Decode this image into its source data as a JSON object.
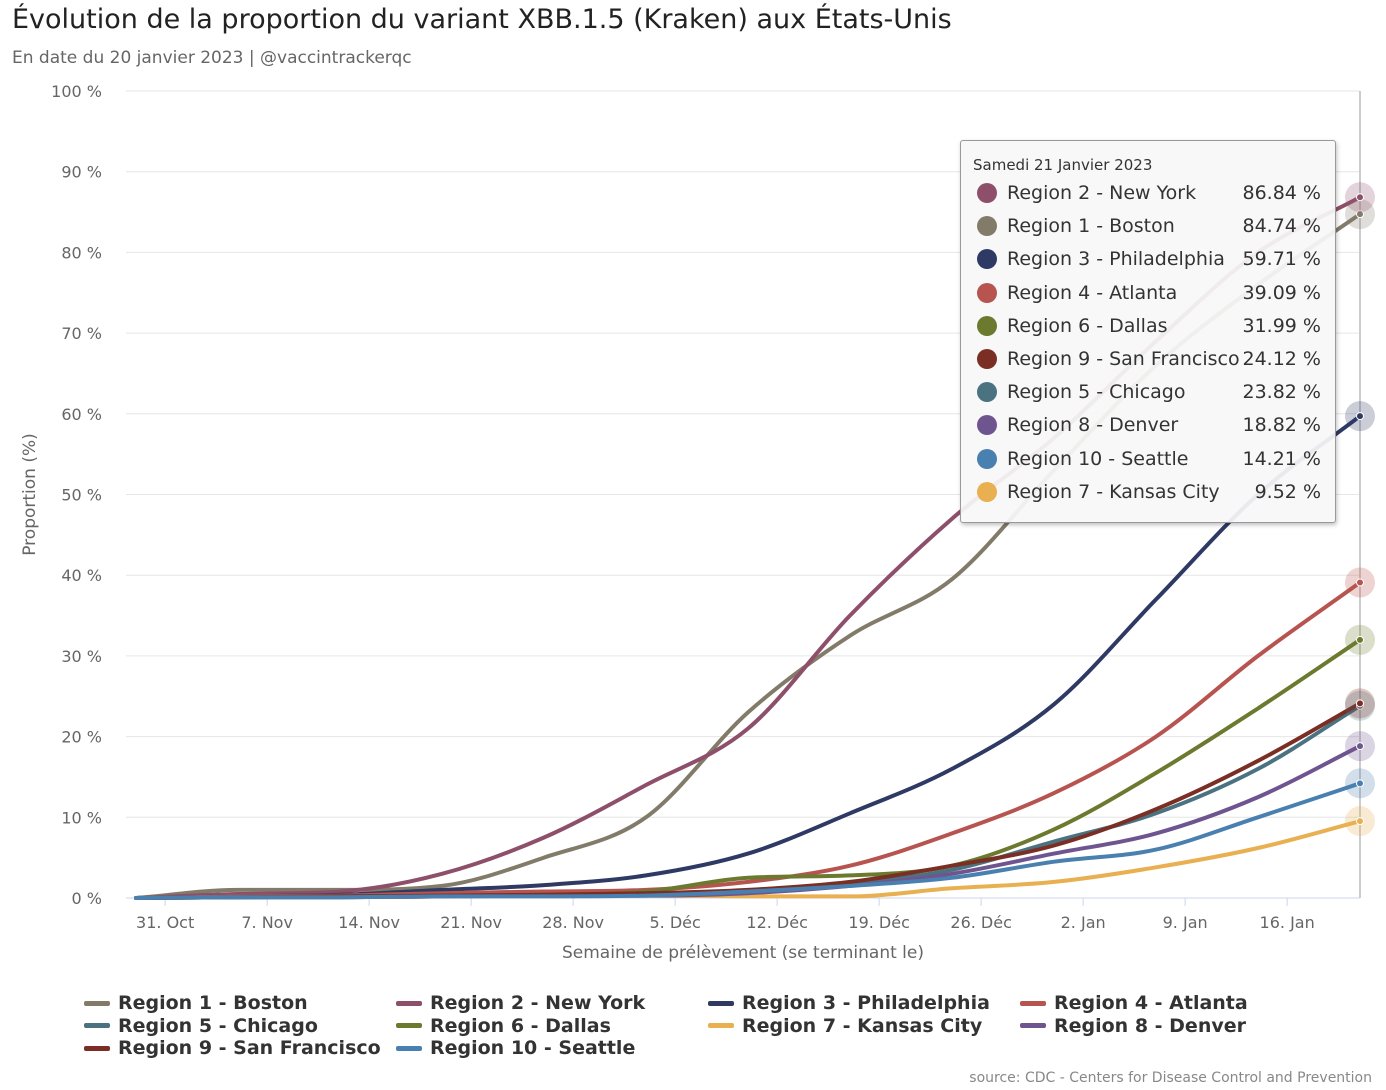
{
  "title": "Évolution de la proportion du variant XBB.1.5 (Kraken) aux États-Unis",
  "subtitle": "En date du 20 janvier 2023 | @vaccintrackerqc",
  "source": "source: CDC - Centers for Disease Control and Prevention",
  "tooltip": {
    "title": "Samedi 21 Janvier 2023",
    "rows": [
      {
        "name": "Region 2 - New York",
        "value": "86.84 %",
        "color": "#8e4f6a"
      },
      {
        "name": "Region 1 - Boston",
        "value": "84.74 %",
        "color": "#837b6a"
      },
      {
        "name": "Region 3 - Philadelphia",
        "value": "59.71 %",
        "color": "#2f3a64"
      },
      {
        "name": "Region 4 - Atlanta",
        "value": "39.09 %",
        "color": "#b85450"
      },
      {
        "name": "Region 6 - Dallas",
        "value": "31.99 %",
        "color": "#6b7a2e"
      },
      {
        "name": "Region 9 - San Francisco",
        "value": "24.12 %",
        "color": "#7a2e24"
      },
      {
        "name": "Region 5 - Chicago",
        "value": "23.82 %",
        "color": "#4a7280"
      },
      {
        "name": "Region 8 - Denver",
        "value": "18.82 %",
        "color": "#6f5590"
      },
      {
        "name": "Region 10 - Seattle",
        "value": "14.21 %",
        "color": "#4a80b0"
      },
      {
        "name": "Region 7 - Kansas City",
        "value": "9.52 %",
        "color": "#e8b050"
      }
    ]
  },
  "chart_data": {
    "type": "line",
    "xlabel": "Semaine de prélèvement (se terminant le)",
    "ylabel": "Proportion (%)",
    "ylim": [
      0,
      100
    ],
    "y_ticks": [
      "0 %",
      "10 %",
      "20 %",
      "30 %",
      "40 %",
      "50 %",
      "60 %",
      "70 %",
      "80 %",
      "90 %",
      "100 %"
    ],
    "x": [
      "2022-10-29",
      "2022-11-05",
      "2022-11-12",
      "2022-11-19",
      "2022-11-26",
      "2022-12-03",
      "2022-12-10",
      "2022-12-17",
      "2022-12-24",
      "2022-12-31",
      "2023-01-07",
      "2023-01-14",
      "2023-01-21"
    ],
    "x_ticks": [
      {
        "date": "2022-10-31",
        "label": "31. Oct"
      },
      {
        "date": "2022-11-07",
        "label": "7. Nov"
      },
      {
        "date": "2022-11-14",
        "label": "14. Nov"
      },
      {
        "date": "2022-11-21",
        "label": "21. Nov"
      },
      {
        "date": "2022-11-28",
        "label": "28. Nov"
      },
      {
        "date": "2022-12-05",
        "label": "5. Déc"
      },
      {
        "date": "2022-12-12",
        "label": "12. Déc"
      },
      {
        "date": "2022-12-19",
        "label": "19. Déc"
      },
      {
        "date": "2022-12-26",
        "label": "26. Déc"
      },
      {
        "date": "2023-01-02",
        "label": "2. Jan"
      },
      {
        "date": "2023-01-09",
        "label": "9. Jan"
      },
      {
        "date": "2023-01-16",
        "label": "16. Jan"
      }
    ],
    "grid": true,
    "legend_position": "bottom",
    "series": [
      {
        "name": "Region 1 - Boston",
        "color": "#837b6a",
        "values": [
          0,
          1.0,
          1.0,
          1.5,
          5.0,
          10.0,
          23.0,
          32.5,
          39.5,
          53.0,
          66.0,
          76.0,
          84.74
        ]
      },
      {
        "name": "Region 2 - New York",
        "color": "#8e4f6a",
        "values": [
          0,
          0.5,
          0.8,
          3.0,
          7.5,
          14.0,
          21.0,
          35.0,
          47.0,
          57.0,
          69.0,
          80.0,
          86.84
        ]
      },
      {
        "name": "Region 3 - Philadelphia",
        "color": "#2f3a64",
        "values": [
          0,
          0.2,
          0.4,
          1.0,
          1.6,
          2.8,
          5.5,
          10.5,
          16.0,
          24.0,
          37.0,
          50.0,
          59.71
        ]
      },
      {
        "name": "Region 4 - Atlanta",
        "color": "#b85450",
        "values": [
          0,
          0.2,
          0.3,
          0.6,
          0.8,
          1.0,
          2.0,
          4.0,
          8.0,
          13.0,
          20.0,
          30.0,
          39.09
        ]
      },
      {
        "name": "Region 5 - Chicago",
        "color": "#4a7280",
        "values": [
          0,
          0.1,
          0.1,
          0.2,
          0.3,
          0.4,
          0.8,
          1.8,
          3.5,
          7.0,
          10.5,
          16.0,
          23.82
        ]
      },
      {
        "name": "Region 6 - Dallas",
        "color": "#6b7a2e",
        "values": [
          0,
          0.1,
          0.2,
          0.3,
          0.4,
          0.8,
          2.5,
          2.8,
          4.0,
          8.5,
          15.5,
          23.5,
          31.99
        ]
      },
      {
        "name": "Region 7 - Kansas City",
        "color": "#e8b050",
        "values": [
          0,
          0.1,
          0.1,
          0.2,
          0.3,
          0.3,
          0.2,
          0.2,
          1.2,
          2.0,
          3.8,
          6.2,
          9.52
        ]
      },
      {
        "name": "Region 8 - Denver",
        "color": "#6f5590",
        "values": [
          0,
          0.1,
          0.1,
          0.2,
          0.3,
          0.3,
          0.6,
          1.5,
          3.0,
          5.5,
          8.0,
          12.5,
          18.82
        ]
      },
      {
        "name": "Region 9 - San Francisco",
        "color": "#7a2e24",
        "values": [
          0,
          0.1,
          0.2,
          0.3,
          0.4,
          0.6,
          1.0,
          2.0,
          4.0,
          6.5,
          11.0,
          17.0,
          24.12
        ]
      },
      {
        "name": "Region 10 - Seattle",
        "color": "#4a80b0",
        "values": [
          0,
          0.1,
          0.1,
          0.2,
          0.2,
          0.3,
          0.8,
          1.5,
          2.5,
          4.5,
          6.0,
          10.0,
          14.21
        ]
      }
    ]
  }
}
